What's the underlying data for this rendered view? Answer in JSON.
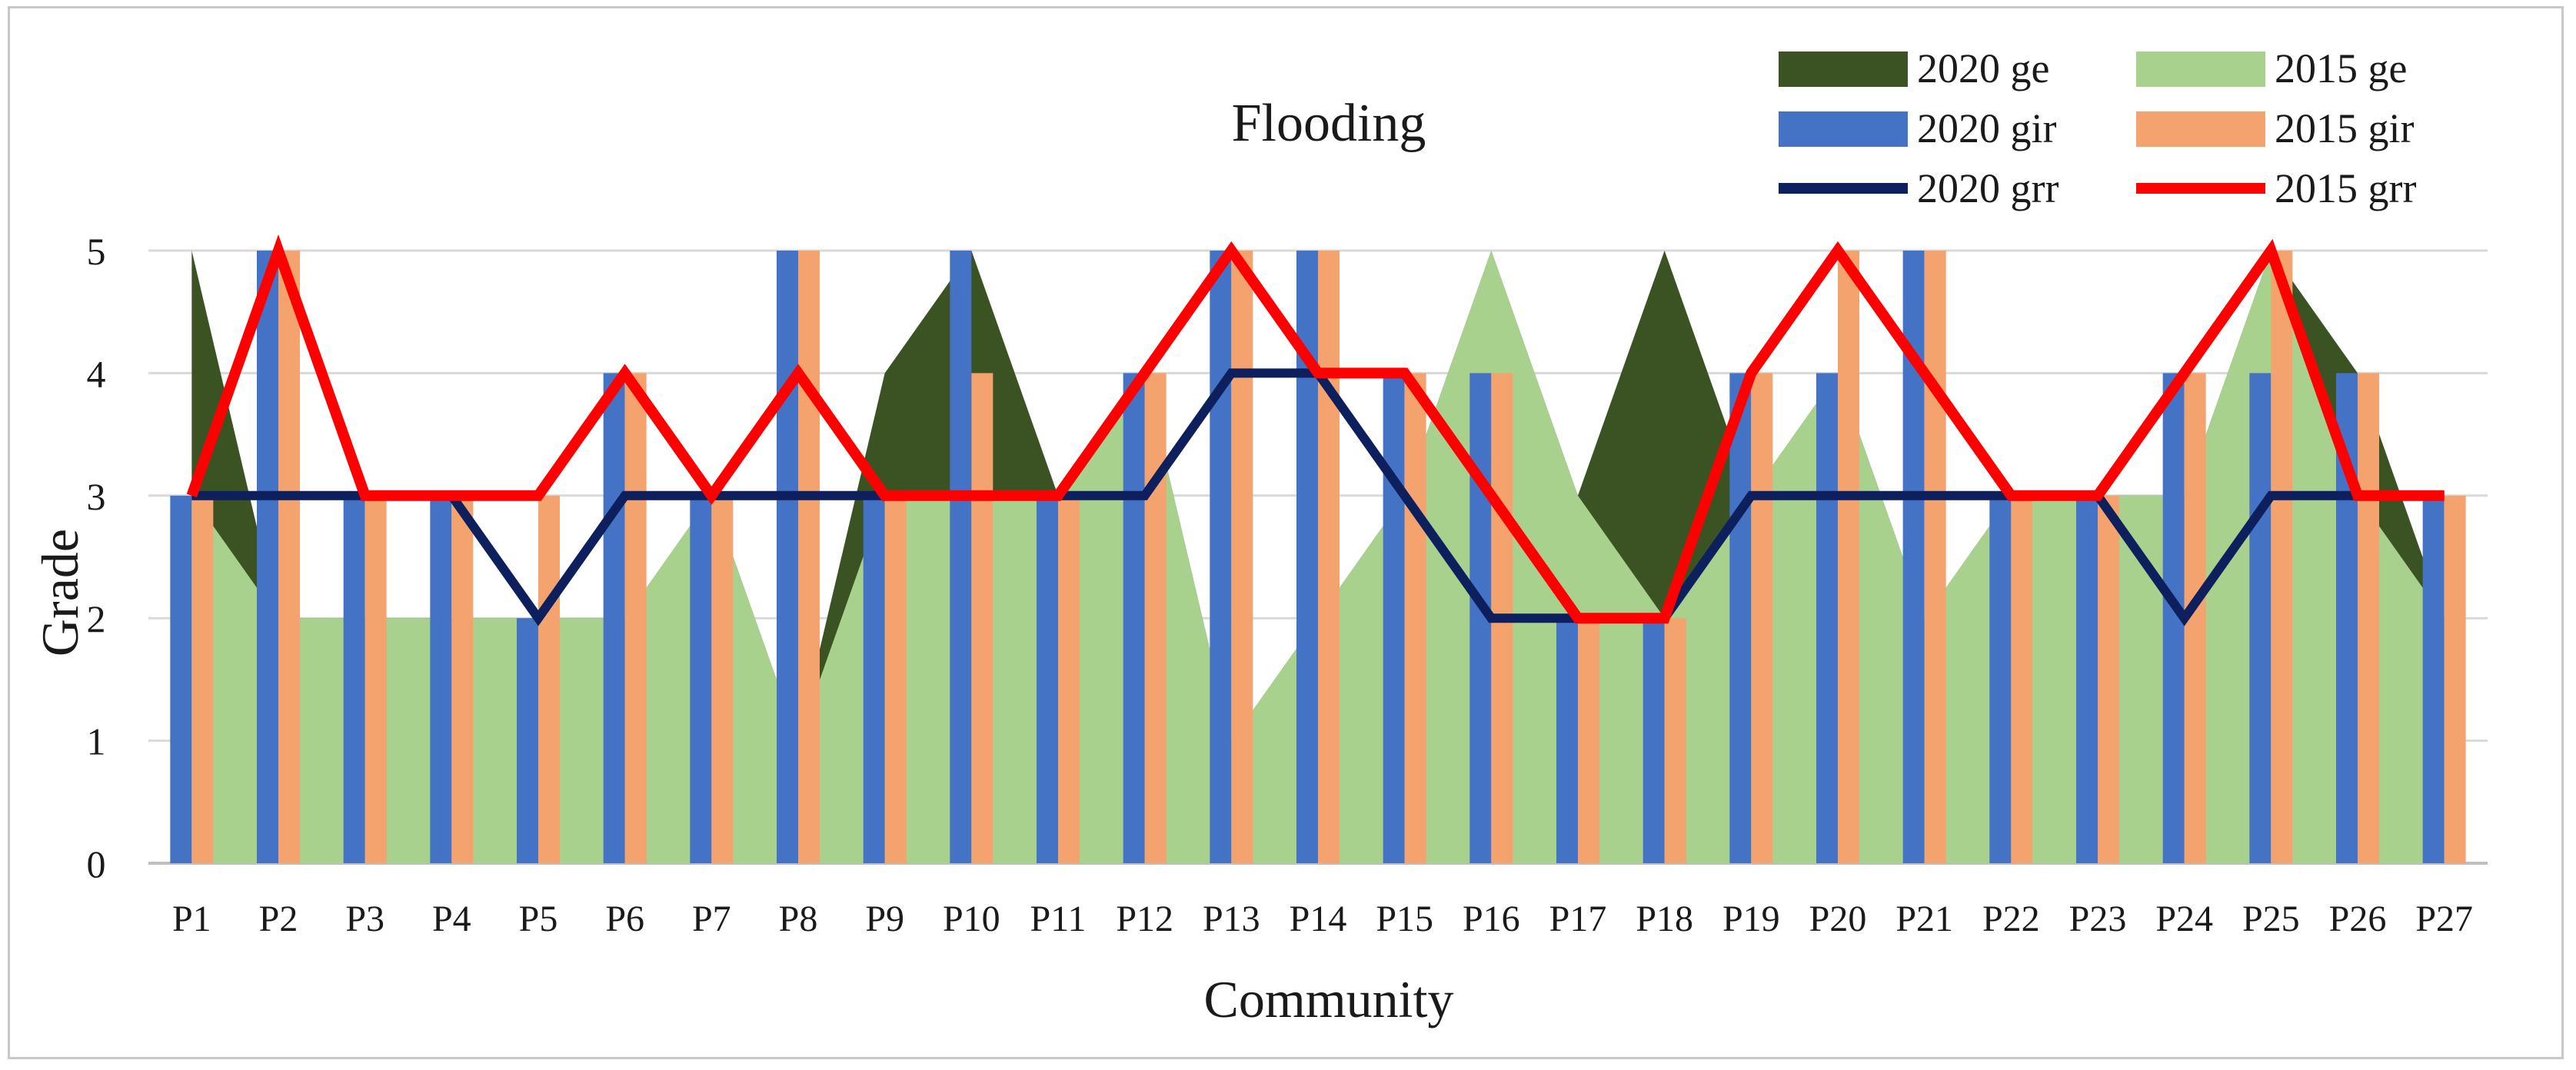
{
  "chart_data": {
    "type": "bar",
    "title": "Flooding",
    "xlabel": "Community",
    "ylabel": "Grade",
    "ylim": [
      0,
      5
    ],
    "yticks": [
      0,
      1,
      2,
      3,
      4,
      5
    ],
    "grid": true,
    "legend_position": "top-right",
    "categories": [
      "P1",
      "P2",
      "P3",
      "P4",
      "P5",
      "P6",
      "P7",
      "P8",
      "P9",
      "P10",
      "P11",
      "P12",
      "P13",
      "P14",
      "P15",
      "P16",
      "P17",
      "P18",
      "P19",
      "P20",
      "P21",
      "P22",
      "P23",
      "P24",
      "P25",
      "P26",
      "P27"
    ],
    "series": [
      {
        "name": "2020 ge",
        "kind": "area",
        "color": "#3b5323",
        "values": [
          5,
          2,
          2,
          2,
          2,
          2,
          3,
          1,
          4,
          5,
          3,
          4,
          1,
          2,
          3,
          5,
          3,
          5,
          3,
          4,
          2,
          3,
          3,
          3,
          5,
          4,
          2
        ]
      },
      {
        "name": "2015 ge",
        "kind": "area",
        "color": "#a9d18e",
        "values": [
          3,
          2,
          2,
          2,
          2,
          2,
          3,
          1,
          3,
          3,
          3,
          4,
          1,
          2,
          3,
          5,
          3,
          2,
          3,
          4,
          2,
          3,
          3,
          3,
          5,
          3,
          2
        ]
      },
      {
        "name": "2020 gir",
        "kind": "bar",
        "color": "#4472c4",
        "values": [
          3,
          5,
          3,
          3,
          2,
          4,
          3,
          5,
          3,
          5,
          3,
          4,
          5,
          5,
          4,
          4,
          2,
          2,
          4,
          4,
          5,
          3,
          3,
          4,
          4,
          4,
          3
        ]
      },
      {
        "name": "2015 gir",
        "kind": "bar",
        "color": "#f4a36e",
        "values": [
          3,
          5,
          3,
          3,
          3,
          4,
          3,
          5,
          3,
          4,
          3,
          4,
          5,
          5,
          4,
          4,
          2,
          2,
          4,
          5,
          5,
          3,
          3,
          4,
          5,
          4,
          3
        ]
      },
      {
        "name": "2020 grr",
        "kind": "line",
        "color": "#0d1f5c",
        "values": [
          3,
          3,
          3,
          3,
          2,
          3,
          3,
          3,
          3,
          3,
          3,
          3,
          4,
          4,
          3,
          2,
          2,
          2,
          3,
          3,
          3,
          3,
          3,
          2,
          3,
          3,
          3
        ]
      },
      {
        "name": "2015 grr",
        "kind": "line",
        "color": "#ff0000",
        "values": [
          3,
          5,
          3,
          3,
          3,
          4,
          3,
          4,
          3,
          3,
          3,
          4,
          5,
          4,
          4,
          3,
          2,
          2,
          4,
          5,
          4,
          3,
          3,
          4,
          5,
          3,
          3
        ]
      }
    ]
  }
}
